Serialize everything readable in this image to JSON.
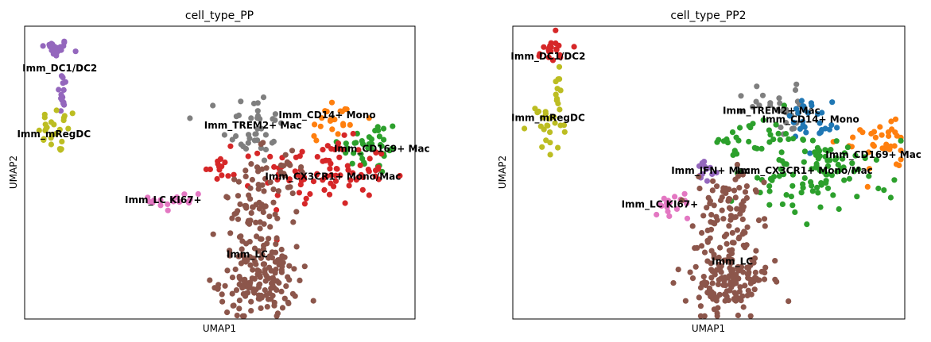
{
  "chart_data": [
    {
      "type": "scatter",
      "title": "cell_type_PP",
      "xlabel": "UMAP1",
      "ylabel": "UMAP2",
      "xlim": [
        0,
        10
      ],
      "ylim": [
        0,
        10
      ],
      "ticks": "none",
      "grid": false,
      "legend": "on data",
      "clusters": [
        {
          "name": "Imm_DC1/DC2",
          "color": "#9467bd",
          "blobs": [
            {
              "cx": 0.75,
              "cy": 9.25,
              "sx": 0.2,
              "sy": 0.15,
              "n": 22
            },
            {
              "cx": 0.98,
              "cy": 7.65,
              "sx": 0.06,
              "sy": 0.45,
              "n": 14
            }
          ]
        },
        {
          "name": "Imm_mRegDC",
          "color": "#bcbd22",
          "blobs": [
            {
              "cx": 0.85,
              "cy": 6.45,
              "sx": 0.25,
              "sy": 0.4,
              "n": 26
            }
          ]
        },
        {
          "name": "Imm_TREM2+ Mac",
          "color": "#7f7f7f",
          "blobs": [
            {
              "cx": 5.85,
              "cy": 6.55,
              "sx": 0.4,
              "sy": 0.65,
              "n": 38
            }
          ]
        },
        {
          "name": "Imm_CD14+ Mono",
          "color": "#ff7f0e",
          "blobs": [
            {
              "cx": 7.9,
              "cy": 6.8,
              "sx": 0.4,
              "sy": 0.4,
              "n": 22
            }
          ]
        },
        {
          "name": "Imm_CD169+ Mac",
          "color": "#2ca02c",
          "blobs": [
            {
              "cx": 8.85,
              "cy": 5.9,
              "sx": 0.4,
              "sy": 0.5,
              "n": 38
            }
          ]
        },
        {
          "name": "Imm_CX3CR1+ Mono/Mac",
          "color": "#d62728",
          "blobs": [
            {
              "cx": 7.7,
              "cy": 5.0,
              "sx": 0.8,
              "sy": 0.55,
              "n": 95
            },
            {
              "cx": 5.0,
              "cy": 5.2,
              "sx": 0.2,
              "sy": 0.3,
              "n": 14
            }
          ]
        },
        {
          "name": "Imm_LC KI67+",
          "color": "#e377c2",
          "blobs": [
            {
              "cx": 3.9,
              "cy": 4.05,
              "sx": 0.35,
              "sy": 0.22,
              "n": 18
            }
          ]
        },
        {
          "name": "Imm_LC",
          "color": "#8c564b",
          "blobs": [
            {
              "cx": 6.0,
              "cy": 1.3,
              "sx": 0.5,
              "sy": 0.6,
              "n": 150
            },
            {
              "cx": 6.0,
              "cy": 3.5,
              "sx": 0.5,
              "sy": 0.85,
              "n": 80
            },
            {
              "cx": 6.6,
              "cy": 5.4,
              "sx": 0.3,
              "sy": 0.35,
              "n": 16
            }
          ]
        }
      ],
      "labels": [
        {
          "text": "Imm_DC1/DC2",
          "x": 0.9,
          "y": 8.55
        },
        {
          "text": "Imm_mRegDC",
          "x": 0.75,
          "y": 6.3
        },
        {
          "text": "Imm_CD14+ Mono",
          "x": 7.75,
          "y": 6.95
        },
        {
          "text": "Imm_TREM2+ Mac",
          "x": 5.85,
          "y": 6.6
        },
        {
          "text": "Imm_CD169+ Mac",
          "x": 9.15,
          "y": 5.8
        },
        {
          "text": "Imm_CX3CR1+ Mono/Mac",
          "x": 7.9,
          "y": 4.85
        },
        {
          "text": "Imm_LC KI67+",
          "x": 3.55,
          "y": 4.05
        },
        {
          "text": "Imm_LC",
          "x": 5.7,
          "y": 2.2
        }
      ]
    },
    {
      "type": "scatter",
      "title": "cell_type_PP2",
      "xlabel": "UMAP1",
      "ylabel": "UMAP2",
      "xlim": [
        0,
        10
      ],
      "ylim": [
        0,
        10
      ],
      "ticks": "none",
      "grid": false,
      "legend": "on data",
      "clusters": [
        {
          "name": "Imm_DC1/DC2",
          "color": "#d62728",
          "blobs": [
            {
              "cx": 1.05,
              "cy": 9.15,
              "sx": 0.25,
              "sy": 0.2,
              "n": 20
            }
          ]
        },
        {
          "name": "Imm_mRegDC",
          "color": "#bcbd22",
          "blobs": [
            {
              "cx": 0.9,
              "cy": 6.55,
              "sx": 0.25,
              "sy": 0.4,
              "n": 24
            },
            {
              "cx": 1.15,
              "cy": 7.95,
              "sx": 0.06,
              "sy": 0.45,
              "n": 12
            }
          ]
        },
        {
          "name": "Imm_TREM2+ Mac",
          "color": "#7f7f7f",
          "blobs": [
            {
              "cx": 6.7,
              "cy": 7.25,
              "sx": 0.35,
              "sy": 0.45,
              "n": 30
            }
          ]
        },
        {
          "name": "Imm_CD14+ Mono",
          "color": "#1f77b4",
          "blobs": [
            {
              "cx": 7.6,
              "cy": 6.85,
              "sx": 0.3,
              "sy": 0.4,
              "n": 30
            }
          ]
        },
        {
          "name": "Imm_CD169+ Mac",
          "color": "#ff7f0e",
          "blobs": [
            {
              "cx": 9.3,
              "cy": 5.75,
              "sx": 0.35,
              "sy": 0.5,
              "n": 36
            }
          ]
        },
        {
          "name": "Imm_CX3CR1+ Mono/Mac",
          "color": "#2ca02c",
          "blobs": [
            {
              "cx": 7.6,
              "cy": 5.1,
              "sx": 0.9,
              "sy": 0.7,
              "n": 110
            },
            {
              "cx": 5.9,
              "cy": 6.0,
              "sx": 0.4,
              "sy": 0.35,
              "n": 22
            }
          ]
        },
        {
          "name": "Imm_IFN+ Mac",
          "color": "#9467bd",
          "blobs": [
            {
              "cx": 4.9,
              "cy": 5.0,
              "sx": 0.15,
              "sy": 0.25,
              "n": 12
            }
          ]
        },
        {
          "name": "Imm_LC KI67+",
          "color": "#e377c2",
          "blobs": [
            {
              "cx": 3.9,
              "cy": 3.9,
              "sx": 0.35,
              "sy": 0.22,
              "n": 18
            }
          ]
        },
        {
          "name": "Imm_LC",
          "color": "#8c564b",
          "blobs": [
            {
              "cx": 5.45,
              "cy": 1.4,
              "sx": 0.55,
              "sy": 0.65,
              "n": 150
            },
            {
              "cx": 5.5,
              "cy": 3.6,
              "sx": 0.55,
              "sy": 0.85,
              "n": 85
            }
          ]
        }
      ],
      "labels": [
        {
          "text": "Imm_DC1/DC2",
          "x": 0.9,
          "y": 8.95
        },
        {
          "text": "Imm_mRegDC",
          "x": 0.9,
          "y": 6.85
        },
        {
          "text": "Imm_TREM2+ Mac",
          "x": 6.6,
          "y": 7.1
        },
        {
          "text": "Imm_CD14+ Mono",
          "x": 7.6,
          "y": 6.8
        },
        {
          "text": "Imm_CD169+ Mac",
          "x": 9.2,
          "y": 5.6
        },
        {
          "text": "Imm_IFN+ Mac",
          "x": 5.05,
          "y": 5.05
        },
        {
          "text": "Imm_CX3CR1+ Mono/Mac",
          "x": 7.45,
          "y": 5.05
        },
        {
          "text": "Imm_LC KI67+",
          "x": 3.75,
          "y": 3.9
        },
        {
          "text": "Imm_LC",
          "x": 5.6,
          "y": 1.95
        }
      ]
    }
  ]
}
